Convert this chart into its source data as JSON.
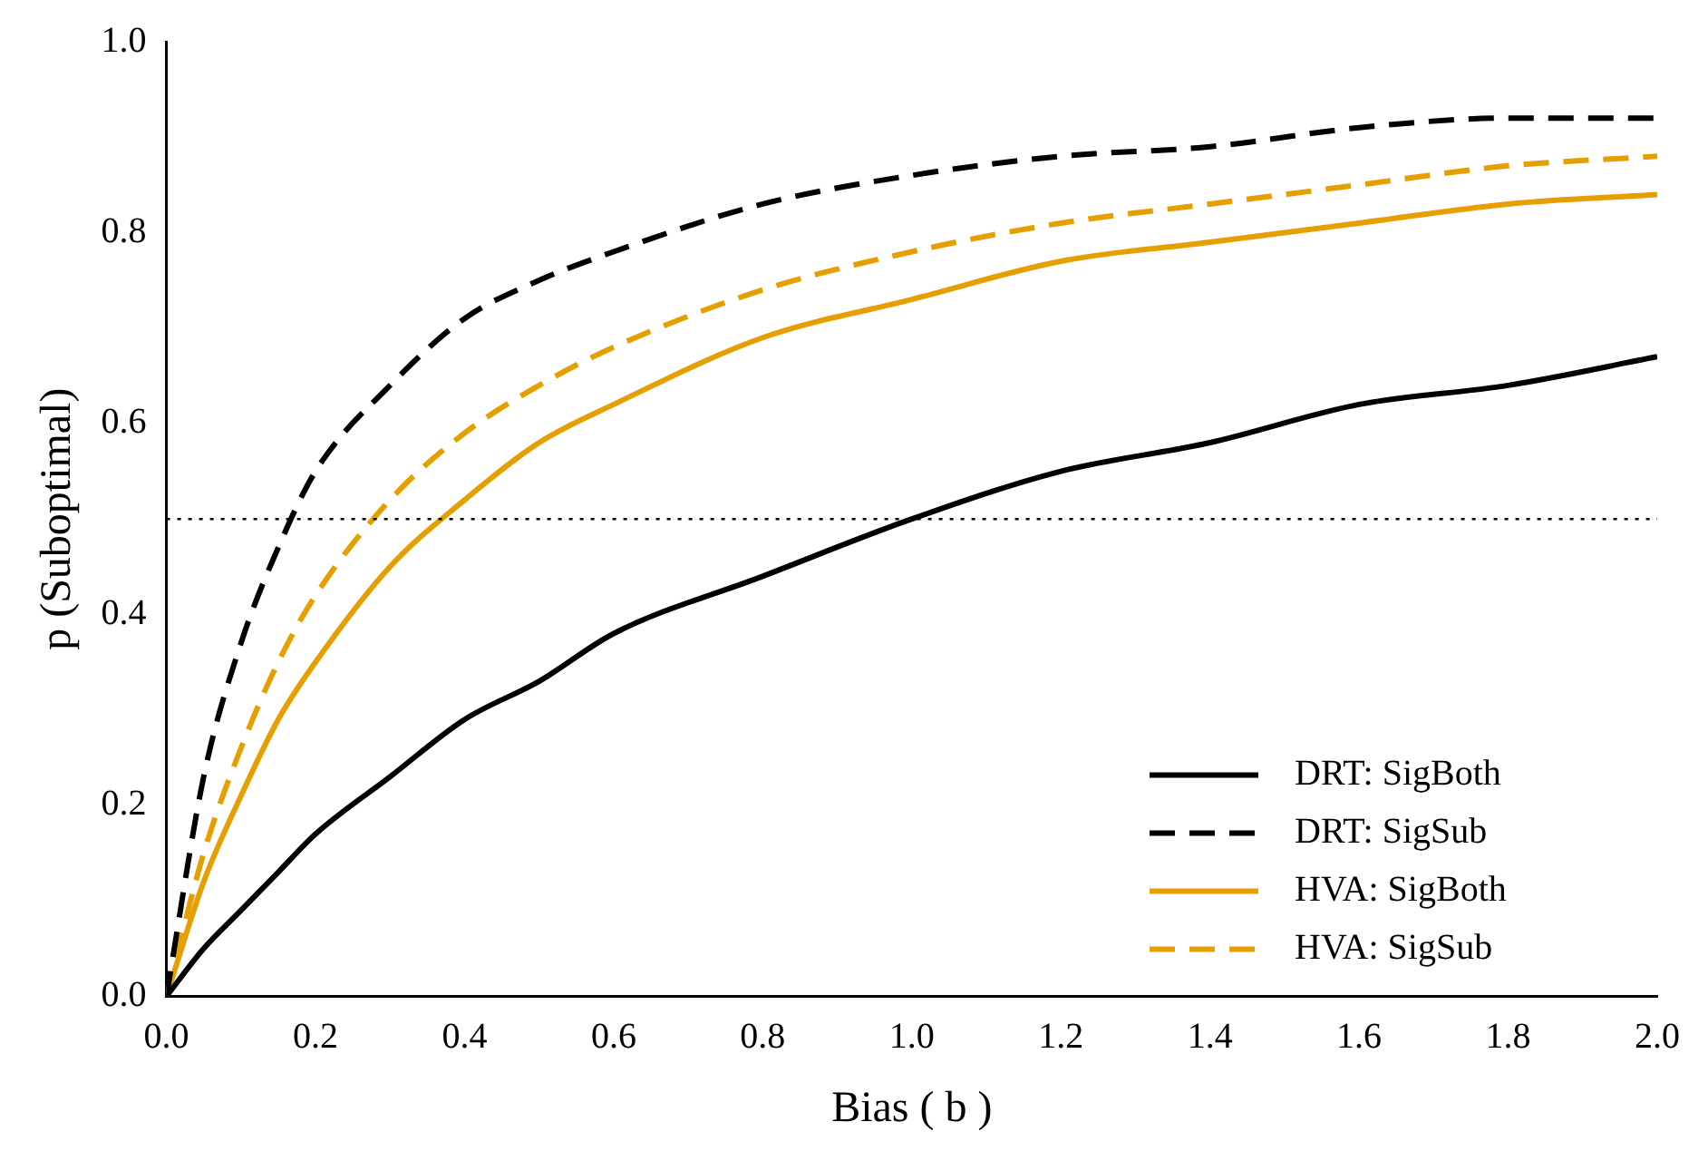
{
  "chart_data": {
    "type": "line",
    "xlabel": "Bias ( b )",
    "ylabel": "p (Suboptimal)",
    "x": [
      0,
      0.05,
      0.1,
      0.15,
      0.2,
      0.3,
      0.4,
      0.5,
      0.6,
      0.8,
      1.0,
      1.2,
      1.4,
      1.6,
      1.8,
      2.0
    ],
    "series": [
      {
        "name": "DRT: SigBoth",
        "color": "#000000",
        "line_style": "solid",
        "values": [
          0,
          0.05,
          0.09,
          0.13,
          0.17,
          0.23,
          0.29,
          0.33,
          0.38,
          0.44,
          0.5,
          0.55,
          0.58,
          0.62,
          0.64,
          0.67
        ]
      },
      {
        "name": "DRT: SigSub",
        "color": "#000000",
        "line_style": "dashed",
        "values": [
          0,
          0.23,
          0.37,
          0.47,
          0.55,
          0.64,
          0.71,
          0.75,
          0.78,
          0.83,
          0.86,
          0.88,
          0.89,
          0.91,
          0.92,
          0.92
        ]
      },
      {
        "name": "HVA: SigBoth",
        "color": "#e69f00",
        "line_style": "solid",
        "values": [
          0,
          0.12,
          0.21,
          0.29,
          0.35,
          0.45,
          0.52,
          0.58,
          0.62,
          0.69,
          0.73,
          0.77,
          0.79,
          0.81,
          0.83,
          0.84
        ]
      },
      {
        "name": "HVA: SigSub",
        "color": "#e69f00",
        "line_style": "dashed",
        "values": [
          0,
          0.15,
          0.26,
          0.35,
          0.42,
          0.52,
          0.59,
          0.64,
          0.68,
          0.74,
          0.78,
          0.81,
          0.83,
          0.85,
          0.87,
          0.88
        ]
      }
    ],
    "xlim": [
      0,
      2
    ],
    "xticks": [
      {
        "value": 0,
        "label": "0.0"
      },
      {
        "value": 0.2,
        "label": "0.2"
      },
      {
        "value": 0.4,
        "label": "0.4"
      },
      {
        "value": 0.6,
        "label": "0.6"
      },
      {
        "value": 0.8,
        "label": "0.8"
      },
      {
        "value": 1,
        "label": "1.0"
      },
      {
        "value": 1.2,
        "label": "1.2"
      },
      {
        "value": 1.4,
        "label": "1.4"
      },
      {
        "value": 1.6,
        "label": "1.6"
      },
      {
        "value": 1.8,
        "label": "1.8"
      },
      {
        "value": 2,
        "label": "2.0"
      }
    ],
    "ylim": [
      0,
      1
    ],
    "yticks": [
      {
        "value": 0,
        "label": "0.0"
      },
      {
        "value": 0.2,
        "label": "0.2"
      },
      {
        "value": 0.4,
        "label": "0.4"
      },
      {
        "value": 0.6,
        "label": "0.6"
      },
      {
        "value": 0.8,
        "label": "0.8"
      },
      {
        "value": 1,
        "label": "1.0"
      }
    ],
    "ref_lines": [
      {
        "axis": "y",
        "value": 0.5,
        "line_style": "dotted",
        "color": "#000000"
      }
    ],
    "grid": false,
    "legend": "bottom right",
    "marker": "none"
  }
}
